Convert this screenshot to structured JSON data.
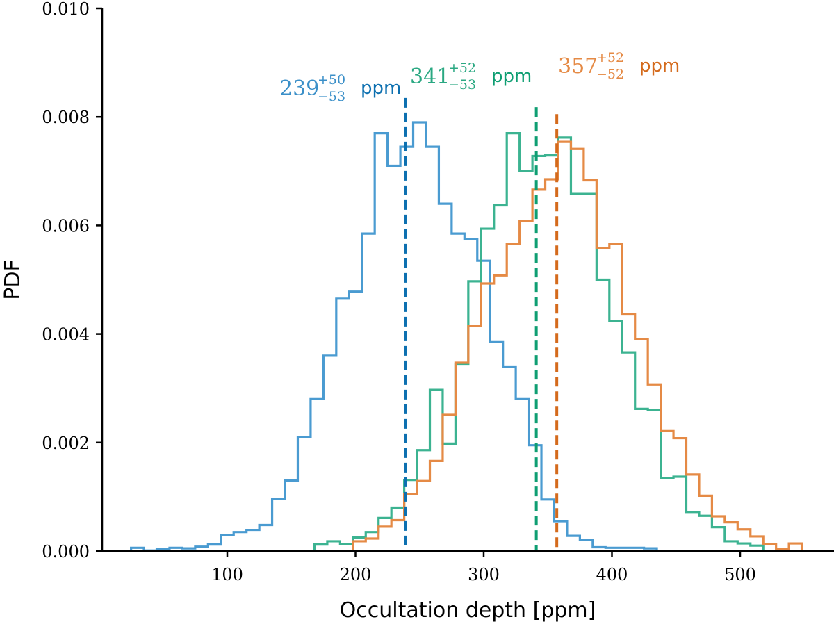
{
  "chart_data": {
    "type": "histogram",
    "xlabel": "Occultation depth [ppm]",
    "ylabel": "PDF",
    "xlim": [
      0,
      560
    ],
    "ylim": [
      0,
      0.01
    ],
    "xticks": [
      100,
      200,
      300,
      400,
      500
    ],
    "xtick_labels": [
      "100",
      "200",
      "300",
      "400",
      "500"
    ],
    "yticks": [
      0,
      0.002,
      0.004,
      0.006,
      0.008,
      0.01
    ],
    "ytick_labels": [
      "0.000",
      "0.002",
      "0.004",
      "0.006",
      "0.008",
      "0.010"
    ],
    "grid": false,
    "series": [
      {
        "name": "blue",
        "color": "#4a9bd1",
        "line_color": "#0d70b0",
        "median": 239,
        "label_value": "239",
        "label_plus": "+50",
        "label_minus": "−53",
        "label_unit": "ppm",
        "label_color": "#3a8fc8",
        "unit_color": "#0d70b0",
        "edges": [
          25,
          35,
          45,
          55,
          65,
          75,
          85,
          95,
          105,
          115,
          125,
          135,
          145,
          155,
          165,
          175,
          185,
          195,
          205,
          215,
          225,
          235,
          245,
          255,
          265,
          275,
          285,
          295,
          305,
          315,
          325,
          335,
          345,
          355,
          365,
          375,
          385,
          395,
          405,
          415,
          425,
          435
        ],
        "values": [
          6e-05,
          1e-05,
          3e-05,
          6e-05,
          5e-05,
          8e-05,
          0.00012,
          0.00029,
          0.00035,
          0.00039,
          0.00048,
          0.00096,
          0.0013,
          0.0021,
          0.0028,
          0.0036,
          0.00465,
          0.00478,
          0.00585,
          0.0077,
          0.0071,
          0.00745,
          0.0079,
          0.00745,
          0.0064,
          0.00585,
          0.00575,
          0.00535,
          0.00385,
          0.0034,
          0.0028,
          0.00195,
          0.00095,
          0.00055,
          0.00028,
          0.0002,
          7e-05,
          6e-05,
          6e-05,
          6e-05,
          5e-05
        ]
      },
      {
        "name": "green",
        "color": "#3cb391",
        "line_color": "#0e9e72",
        "median": 341,
        "label_value": "341",
        "label_plus": "+52",
        "label_minus": "−53",
        "label_unit": "ppm",
        "label_color": "#2aa882",
        "unit_color": "#0e9e72",
        "edges": [
          168,
          178,
          188,
          198,
          208,
          218,
          228,
          238,
          248,
          258,
          268,
          278,
          288,
          298,
          308,
          318,
          328,
          338,
          348,
          358,
          368,
          378,
          388,
          398,
          408,
          418,
          428,
          438,
          448,
          458,
          468,
          478,
          488,
          498,
          508,
          518
        ],
        "values": [
          0.00012,
          0.00018,
          0.00013,
          0.00025,
          0.00035,
          0.00061,
          0.0008,
          0.00131,
          0.00186,
          0.00297,
          0.00198,
          0.00345,
          0.00497,
          0.00594,
          0.00637,
          0.0077,
          0.007,
          0.00728,
          0.00729,
          0.00762,
          0.00658,
          0.00658,
          0.005,
          0.00424,
          0.00366,
          0.00262,
          0.0026,
          0.00135,
          0.00137,
          0.00072,
          0.00065,
          0.00044,
          0.00018,
          0.00014,
          0.0001
        ]
      },
      {
        "name": "orange",
        "color": "#e58a45",
        "line_color": "#d46a1c",
        "median": 357,
        "label_value": "357",
        "label_plus": "+52",
        "label_minus": "−52",
        "label_unit": "ppm",
        "label_color": "#e58a45",
        "unit_color": "#d46a1c",
        "edges": [
          198,
          208,
          218,
          228,
          238,
          248,
          258,
          268,
          278,
          288,
          298,
          308,
          318,
          328,
          338,
          348,
          358,
          368,
          378,
          388,
          398,
          408,
          418,
          428,
          438,
          448,
          458,
          468,
          478,
          488,
          498,
          508,
          518,
          528,
          538,
          548
        ],
        "values": [
          0.00018,
          0.00023,
          0.00045,
          0.00057,
          0.00105,
          0.00129,
          0.00166,
          0.00251,
          0.00347,
          0.00415,
          0.00493,
          0.00508,
          0.00566,
          0.00608,
          0.00666,
          0.00685,
          0.00754,
          0.00741,
          0.00683,
          0.00558,
          0.00566,
          0.00436,
          0.00391,
          0.00307,
          0.00221,
          0.00208,
          0.00141,
          0.00102,
          0.00064,
          0.00053,
          0.0004,
          0.00027,
          0.00013,
          3e-05,
          0.00014
        ]
      }
    ]
  }
}
